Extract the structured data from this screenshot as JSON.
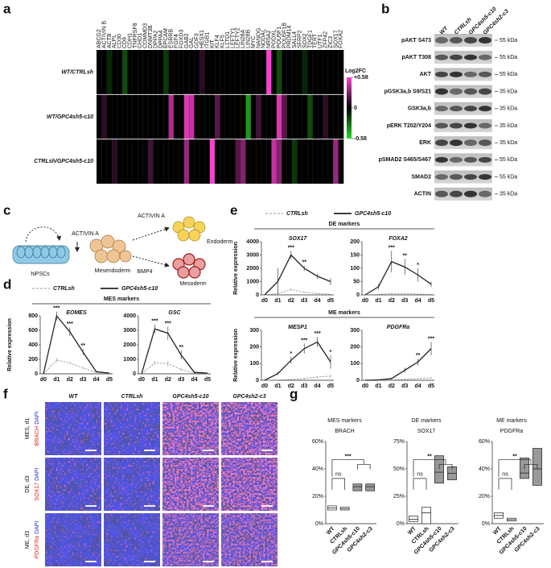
{
  "panel_labels": [
    "a",
    "b",
    "c",
    "d",
    "e",
    "f",
    "g"
  ],
  "heatmap": {
    "genes": [
      "ABCG2",
      "ACTIVIN B",
      "ACTB",
      "ALPL",
      "CD30",
      "CD9",
      "CDH1",
      "TNFRSF8",
      "CHD1",
      "COMMD3",
      "DNMT3B",
      "DPPA2",
      "DPPA4",
      "EPCAM",
      "ESRRB",
      "FGF4",
      "FOXD3",
      "GAB2",
      "GAL",
      "GDF3",
      "HESX1",
      "ITGB1",
      "KIT",
      "KLF4",
      "KLF5",
      "L1TD1",
      "LEFTY1",
      "LEFTY2",
      "LIN28A",
      "LIN28B",
      "MYC",
      "NANOG",
      "NODAL",
      "NR5A2",
      "PODXL",
      "POU5F1",
      "POU5F1B",
      "PRDM14",
      "SALL4",
      "SFRP2",
      "SOX2",
      "TDGF1",
      "TERT",
      "UTF1",
      "ZFP42",
      "ZIC3",
      "SOX17",
      "FOXA2"
    ],
    "rows": [
      {
        "label": "WT/CTRLsh",
        "values": [
          0,
          0,
          -0.1,
          0,
          0,
          -0.2,
          0,
          0,
          0,
          0,
          0,
          0,
          0,
          -0.15,
          0,
          0,
          0,
          0,
          0,
          0,
          0.1,
          0,
          0,
          0,
          0,
          0,
          0,
          0,
          0,
          0,
          0,
          0,
          0,
          0.58,
          0,
          -0.2,
          0,
          0,
          0,
          0,
          -0.1,
          0,
          0,
          0,
          0,
          0,
          0,
          0
        ]
      },
      {
        "label": "WT/GPC4sh5-c10",
        "values": [
          0,
          0.1,
          0,
          0,
          0,
          0,
          0,
          0,
          0,
          0,
          0,
          0,
          0,
          0,
          0.4,
          0,
          0,
          0.5,
          0.45,
          0,
          0,
          0,
          0,
          0.2,
          0,
          0,
          0,
          0,
          0,
          -0.4,
          0,
          0.15,
          0,
          0,
          0,
          0.5,
          0.2,
          0,
          0,
          0,
          0,
          -0.2,
          0,
          0,
          0.1,
          0,
          0,
          0
        ]
      },
      {
        "label": "CTRLsh/GPC4sh5-c10",
        "values": [
          0,
          0,
          0,
          0.1,
          0,
          0,
          0,
          0,
          0,
          0,
          0.15,
          0,
          0,
          0,
          0,
          0,
          0,
          0.35,
          0,
          0,
          0,
          0,
          0.58,
          0,
          0,
          0,
          0,
          0.2,
          0.3,
          0,
          0,
          0,
          0,
          0,
          0.45,
          0.3,
          0,
          0,
          -0.15,
          0,
          0,
          0,
          0,
          0,
          0,
          0,
          0.35,
          0
        ]
      }
    ],
    "colorbar": {
      "label": "Log2FC",
      "lim": [
        -0.58,
        0.58
      ],
      "ticks": [
        {
          "value": 0.58,
          "label": "+0.58"
        },
        0,
        -0.58
      ],
      "colors": {
        "high": "#ff3fd0",
        "zero": "#000000",
        "low": "#22dd22"
      }
    }
  },
  "blot": {
    "columns": [
      "WT",
      "CTRLsh",
      "GPC4sh5-c10",
      "GPC4sh2-c3"
    ],
    "rows": [
      {
        "label": "pAKT S473",
        "size": "55 kDa"
      },
      {
        "label": "pAKT T308",
        "size": "55 kDa"
      },
      {
        "label": "AKT",
        "size": "55 kDa"
      },
      {
        "label": "pGSK3a,b S9/S21",
        "size": "35 kDa"
      },
      {
        "label": "GSK3a,b",
        "size": "35 kDa"
      },
      {
        "label": "pERK T202/Y204",
        "size": "35 kDa"
      },
      {
        "label": "ERK",
        "size": "35 kDa"
      },
      {
        "label": "pSMAD2 S465/S467",
        "size": "55 kDa"
      },
      {
        "label": "SMAD2",
        "size": "55 kDa"
      },
      {
        "label": "ACTIN",
        "size": "35 kDa"
      }
    ]
  },
  "diagram": {
    "start": "hiPSCs",
    "step1": "ACTIVIN A",
    "middle": "Mesendoderm",
    "step2": "ACTIVIN A",
    "end1": "Endoderm",
    "step3": "BMP4",
    "end2": "Mesoderm"
  },
  "panel_d": {
    "legend": [
      {
        "name": "CTRLsh",
        "color": "#999999",
        "dashed": true
      },
      {
        "name": "GPC4sh5-c10",
        "color": "#222222",
        "dashed": false
      }
    ],
    "groups": [
      {
        "title": "MES markers",
        "y_label": "Relative expression",
        "charts": [
          {
            "type": "line",
            "title": "EOMES",
            "categories": [
              "d0",
              "d1",
              "d2",
              "d3",
              "d4",
              "d5"
            ],
            "ylim": [
              0,
              800
            ],
            "yticks": [
              0,
              200,
              400,
              600,
              800
            ],
            "series": [
              {
                "values": [
                  0,
                  190,
                  150,
                  80,
                  20,
                  5
                ],
                "errors": [
                  0,
                  30,
                  20,
                  15,
                  5,
                  3
                ]
              },
              {
                "values": [
                  0,
                  800,
                  580,
                  300,
                  30,
                  10
                ],
                "errors": [
                  0,
                  60,
                  60,
                  40,
                  10,
                  5
                ]
              }
            ],
            "stars": [
              null,
              "***",
              "***",
              "**",
              null,
              null
            ]
          },
          {
            "type": "line",
            "title": "GSC",
            "categories": [
              "d0",
              "d1",
              "d2",
              "d3",
              "d4",
              "d5"
            ],
            "ylim": [
              0,
              4000
            ],
            "yticks": [
              0,
              1000,
              2000,
              3000,
              4000
            ],
            "series": [
              {
                "values": [
                  0,
                  750,
                  700,
                  300,
                  50,
                  20
                ],
                "errors": [
                  0,
                  150,
                  200,
                  100,
                  20,
                  10
                ]
              },
              {
                "values": [
                  0,
                  3100,
                  2800,
                  1300,
                  100,
                  50
                ],
                "errors": [
                  0,
                  300,
                  450,
                  300,
                  50,
                  20
                ]
              }
            ],
            "stars": [
              null,
              "***",
              "***",
              "**",
              null,
              null
            ]
          }
        ]
      }
    ]
  },
  "panel_e": {
    "legend": [
      {
        "name": "CTRLsh",
        "color": "#999999",
        "dashed": true
      },
      {
        "name": "GPC4sh5-c10",
        "color": "#222222",
        "dashed": false
      }
    ],
    "groups": [
      {
        "title": "DE markers",
        "y_label": "Relative expression",
        "charts": [
          {
            "type": "line",
            "title": "SOX17",
            "categories": [
              "d0",
              "d1",
              "d2",
              "d3",
              "d4",
              "d5"
            ],
            "ylim": [
              0,
              4000
            ],
            "yticks": [
              0,
              1000,
              2000,
              3000,
              4000
            ],
            "series": [
              {
                "values": [
                  0,
                  100,
                  400,
                  200,
                  100,
                  50
                ],
                "errors": [
                  0,
                  50,
                  100,
                  80,
                  40,
                  20
                ]
              },
              {
                "values": [
                  0,
                  1000,
                  3000,
                  2000,
                  1400,
                  1000
                ],
                "errors": [
                  0,
                  1000,
                  300,
                  200,
                  200,
                  250
                ]
              }
            ],
            "stars": [
              null,
              null,
              "***",
              "**",
              null,
              null
            ]
          },
          {
            "type": "line",
            "title": "FOXA2",
            "categories": [
              "d0",
              "d1",
              "d2",
              "d3",
              "d4",
              "d5"
            ],
            "ylim": [
              0,
              200
            ],
            "yticks": [
              0,
              50,
              100,
              150,
              200
            ],
            "series": [
              {
                "values": [
                  0,
                  2,
                  5,
                  5,
                  3,
                  2
                ],
                "errors": [
                  0,
                  2,
                  3,
                  3,
                  2,
                  1
                ]
              },
              {
                "values": [
                  0,
                  30,
                  125,
                  105,
                  75,
                  40
                ],
                "errors": [
                  0,
                  10,
                  40,
                  30,
                  25,
                  10
                ]
              }
            ],
            "stars": [
              null,
              null,
              "***",
              "**",
              "*",
              null
            ]
          }
        ]
      },
      {
        "title": "ME markers",
        "y_label": "Relative expression",
        "charts": [
          {
            "type": "line",
            "title": "MESP1",
            "categories": [
              "d0",
              "d1",
              "d2",
              "d3",
              "d4",
              "d5"
            ],
            "ylim": [
              0,
              300
            ],
            "yticks": [
              0,
              100,
              200,
              300
            ],
            "series": [
              {
                "values": [
                  0,
                  2,
                  5,
                  10,
                  20,
                  25
                ],
                "errors": [
                  0,
                  2,
                  3,
                  5,
                  8,
                  10
                ]
              },
              {
                "values": [
                  0,
                  40,
                  120,
                  190,
                  230,
                  110
                ],
                "errors": [
                  0,
                  10,
                  20,
                  30,
                  30,
                  40
                ]
              }
            ],
            "stars": [
              null,
              null,
              "*",
              "***",
              "***",
              "*"
            ]
          },
          {
            "type": "line",
            "title": "PDGFRa",
            "categories": [
              "d0",
              "d1",
              "d2",
              "d3",
              "d4",
              "d5"
            ],
            "ylim": [
              0,
              300
            ],
            "yticks": [
              0,
              100,
              200,
              300
            ],
            "series": [
              {
                "values": [
                  0,
                  0,
                  2,
                  5,
                  10,
                  15
                ],
                "errors": [
                  0,
                  0,
                  1,
                  2,
                  3,
                  5
                ]
              },
              {
                "values": [
                  0,
                  2,
                  10,
                  60,
                  110,
                  190
                ],
                "errors": [
                  0,
                  1,
                  5,
                  15,
                  20,
                  40
                ]
              }
            ],
            "stars": [
              null,
              null,
              null,
              null,
              "**",
              "***"
            ]
          }
        ]
      }
    ]
  },
  "panel_f": {
    "columns": [
      "WT",
      "CTRLsh",
      "GPC4sh5-c10",
      "GPC4sh2-c3"
    ],
    "rows": [
      {
        "stage": "MES, d1",
        "stain": "BRACH",
        "counterstain": "DAPI"
      },
      {
        "stage": "DE, d3",
        "stain": "SOX17",
        "counterstain": "DAPI"
      },
      {
        "stage": "ME, d3",
        "stain": "PDGFRa",
        "counterstain": "DAPI"
      }
    ]
  },
  "panel_g": {
    "charts": [
      {
        "type": "box",
        "group_title": "MES markers",
        "title": "BRACH",
        "categories": [
          "WT",
          "CTRLsh",
          "GPC4sh5-c10",
          "GPC4sh2-c3"
        ],
        "ylim": [
          0,
          60
        ],
        "yticks": [
          {
            "value": 0,
            "label": "0%"
          },
          {
            "value": 20,
            "label": "20%"
          },
          {
            "value": 40,
            "label": "40%"
          },
          {
            "value": 60,
            "label": "60%"
          }
        ],
        "boxes": [
          {
            "q1": 10,
            "median": 11.5,
            "q3": 13
          },
          {
            "q1": 10,
            "median": 11,
            "q3": 12
          },
          {
            "q1": 24,
            "median": 27,
            "q3": 29
          },
          {
            "q1": 24,
            "median": 27,
            "q3": 29
          }
        ],
        "colors": [
          "#ffffff",
          "#ffffff",
          "#999999",
          "#999999"
        ],
        "significance": [
          "ns",
          "***"
        ]
      },
      {
        "type": "box",
        "group_title": "DE markers",
        "title": "SOX17",
        "categories": [
          "WT",
          "CTRLsh",
          "GPC4sh5-c10",
          "GPC4sh2-c3"
        ],
        "ylim": [
          0,
          75
        ],
        "yticks": [
          {
            "value": 0,
            "label": "0%"
          },
          {
            "value": 25,
            "label": "25%"
          },
          {
            "value": 50,
            "label": "50%"
          },
          {
            "value": 75,
            "label": "75%"
          }
        ],
        "boxes": [
          {
            "q1": 2,
            "median": 4,
            "q3": 7
          },
          {
            "q1": 0,
            "median": 10,
            "q3": 15
          },
          {
            "q1": 37,
            "median": 47,
            "q3": 62
          },
          {
            "q1": 40,
            "median": 46,
            "q3": 52
          }
        ],
        "colors": [
          "#ffffff",
          "#ffffff",
          "#999999",
          "#999999"
        ],
        "significance": [
          "ns",
          "**"
        ]
      },
      {
        "type": "box",
        "group_title": "ME markers",
        "title": "PDGFRa",
        "categories": [
          "WT",
          "CTRLsh",
          "GPC4sh5-c10",
          "GPC4sh2-c3"
        ],
        "ylim": [
          0,
          60
        ],
        "yticks": [
          {
            "value": 0,
            "label": "0%"
          },
          {
            "value": 20,
            "label": "20%"
          },
          {
            "value": 40,
            "label": "40%"
          },
          {
            "value": 60,
            "label": "60%"
          }
        ],
        "boxes": [
          {
            "q1": 4,
            "median": 6,
            "q3": 8
          },
          {
            "q1": 2,
            "median": 3,
            "q3": 4
          },
          {
            "q1": 33,
            "median": 37,
            "q3": 48
          },
          {
            "q1": 28,
            "median": 40,
            "q3": 55
          }
        ],
        "colors": [
          "#ffffff",
          "#ffffff",
          "#999999",
          "#999999"
        ],
        "significance": [
          "ns",
          "**"
        ]
      }
    ]
  }
}
